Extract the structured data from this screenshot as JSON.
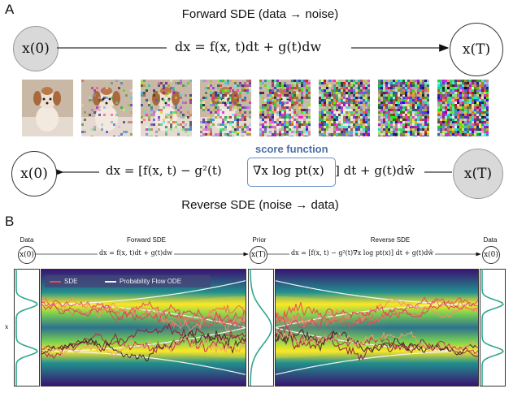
{
  "panel_a": {
    "label": "A",
    "forward_title": "Forward SDE (data → noise)",
    "forward_eq": "dx = f(x, t)dt + g(t)dw",
    "start_node": "x(0)",
    "end_node": "x(T)",
    "score_label": "score function",
    "reverse_eq_pre": "dx = [f(x, t) − g²(t)",
    "reverse_eq_score": "∇x log pt(x)",
    "reverse_eq_post": "] dt + g(t)dŵ",
    "reverse_start": "x(T)",
    "reverse_end": "x(0)",
    "reverse_title": "Reverse SDE (noise → data)",
    "noise_levels": [
      0,
      0.14,
      0.32,
      0.5,
      0.66,
      0.8,
      0.9,
      0.97
    ]
  },
  "panel_b": {
    "label": "B",
    "data_left": "Data",
    "forward_sde": "Forward SDE",
    "prior": "Prior",
    "reverse_sde": "Reverse SDE",
    "data_right": "Data",
    "node_x0": "x(0)",
    "node_xT": "x(T)",
    "node_x0_right": "x(0)",
    "forward_eq": "dx = f(x, t)dt + g(t)dw",
    "reverse_eq": "dx = [f(x, t) − g²(t)∇x log pt(x)] dt + g(t)dŵ",
    "legend_sde": "SDE",
    "legend_ode": "Probability Flow ODE",
    "axis_label": "x"
  },
  "colors": {
    "sde": "#e8485a",
    "ode": "#f4f4f4",
    "score_blue": "#4a6fa5",
    "node_grey": "#d9d9d9",
    "density_low": "#3b0f70",
    "density_mid": "#21908d",
    "density_high": "#fde725"
  }
}
